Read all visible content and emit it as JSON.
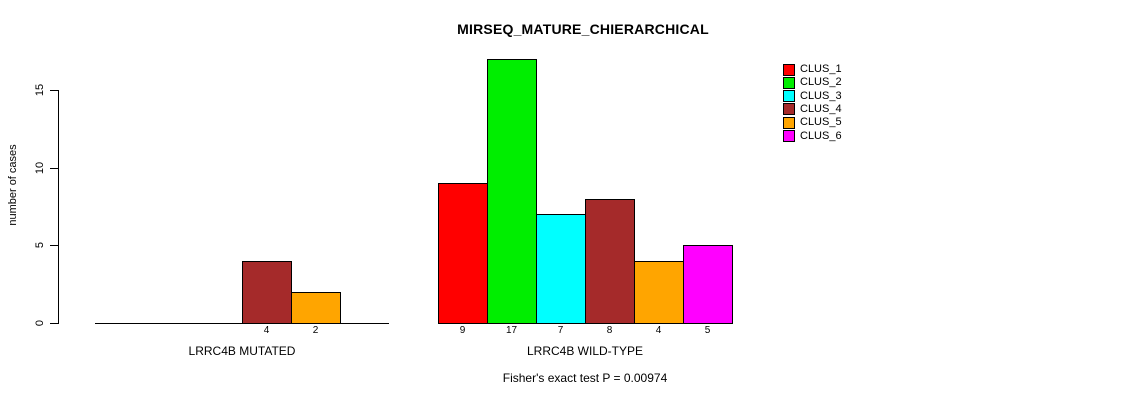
{
  "chart_data": {
    "type": "bar",
    "title": "MIRSEQ_MATURE_CHIERARCHICAL",
    "ylabel": "number of cases",
    "xlabel": "",
    "annotation": "Fisher's exact test P = 0.00974",
    "ylim": [
      0,
      17
    ],
    "yticks": [
      0,
      5,
      10,
      15
    ],
    "grid": false,
    "legend_position": "right",
    "clusters": [
      {
        "name": "CLUS_1",
        "color": "#FF0000"
      },
      {
        "name": "CLUS_2",
        "color": "#00EE00"
      },
      {
        "name": "CLUS_3",
        "color": "#00FFFF"
      },
      {
        "name": "CLUS_4",
        "color": "#A52A2A"
      },
      {
        "name": "CLUS_5",
        "color": "#FFA500"
      },
      {
        "name": "CLUS_6",
        "color": "#FF00FF"
      }
    ],
    "groups": [
      {
        "label": "LRRC4B MUTATED",
        "values": [
          0,
          0,
          0,
          4,
          2,
          0
        ]
      },
      {
        "label": "LRRC4B WILD-TYPE",
        "values": [
          9,
          17,
          7,
          8,
          4,
          5
        ]
      }
    ]
  }
}
